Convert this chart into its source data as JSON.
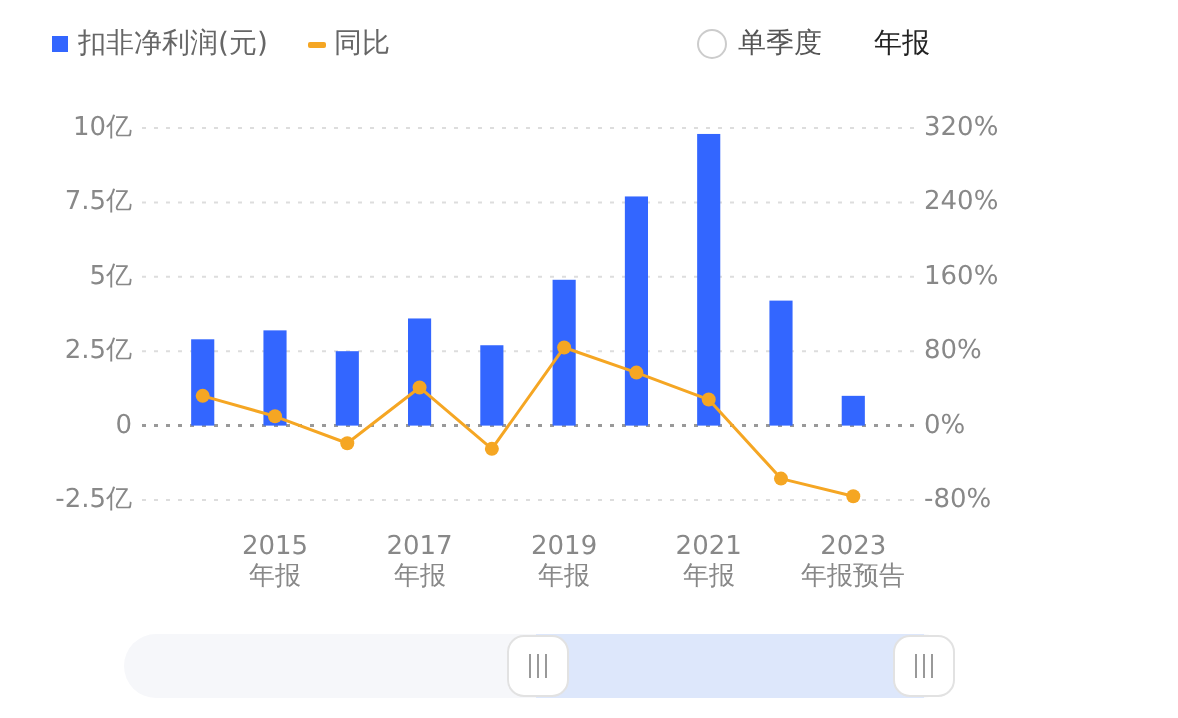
{
  "chart_data": {
    "type": "bar",
    "categories": [
      null,
      "2015\n年报",
      null,
      "2017\n年报",
      null,
      "2019\n年报",
      null,
      "2021\n年报",
      null,
      "2023\n年报预告"
    ],
    "series": [
      {
        "name": "扣非净利润(元)",
        "color": "#3366ff",
        "values": [
          2.9,
          3.2,
          2.5,
          3.6,
          2.7,
          4.9,
          7.7,
          9.8,
          4.2,
          1.0
        ]
      },
      {
        "name": "同比",
        "type": "line",
        "axis": "y2",
        "color": "#f5a623",
        "values": [
          32,
          10,
          -19,
          41,
          -25,
          84,
          57,
          28,
          -57,
          -76
        ]
      }
    ],
    "ylim": [
      -2.5,
      10
    ],
    "yticks": [
      {
        "value": -2.5,
        "label": "-2.5亿"
      },
      0,
      {
        "value": 2.5,
        "label": "2.5亿"
      },
      {
        "value": 5,
        "label": "5亿"
      },
      {
        "value": 7.5,
        "label": "7.5亿"
      },
      {
        "value": 10,
        "label": "10亿"
      }
    ],
    "y2lim": [
      -80,
      320
    ],
    "y2ticks": [
      {
        "value": -80,
        "label": "-80%"
      },
      {
        "value": 0,
        "label": "0%"
      },
      {
        "value": 80,
        "label": "80%"
      },
      {
        "value": 160,
        "label": "160%"
      },
      {
        "value": 240,
        "label": "240%"
      },
      {
        "value": 320,
        "label": "320%"
      }
    ],
    "grid": "y",
    "ref_lines": [
      {
        "axis": "y",
        "value": 0,
        "color": "#999999",
        "line_style": "dotted"
      }
    ],
    "legend": "top left",
    "marker": "circle",
    "annotations": [
      "单季度",
      "年报"
    ]
  }
}
